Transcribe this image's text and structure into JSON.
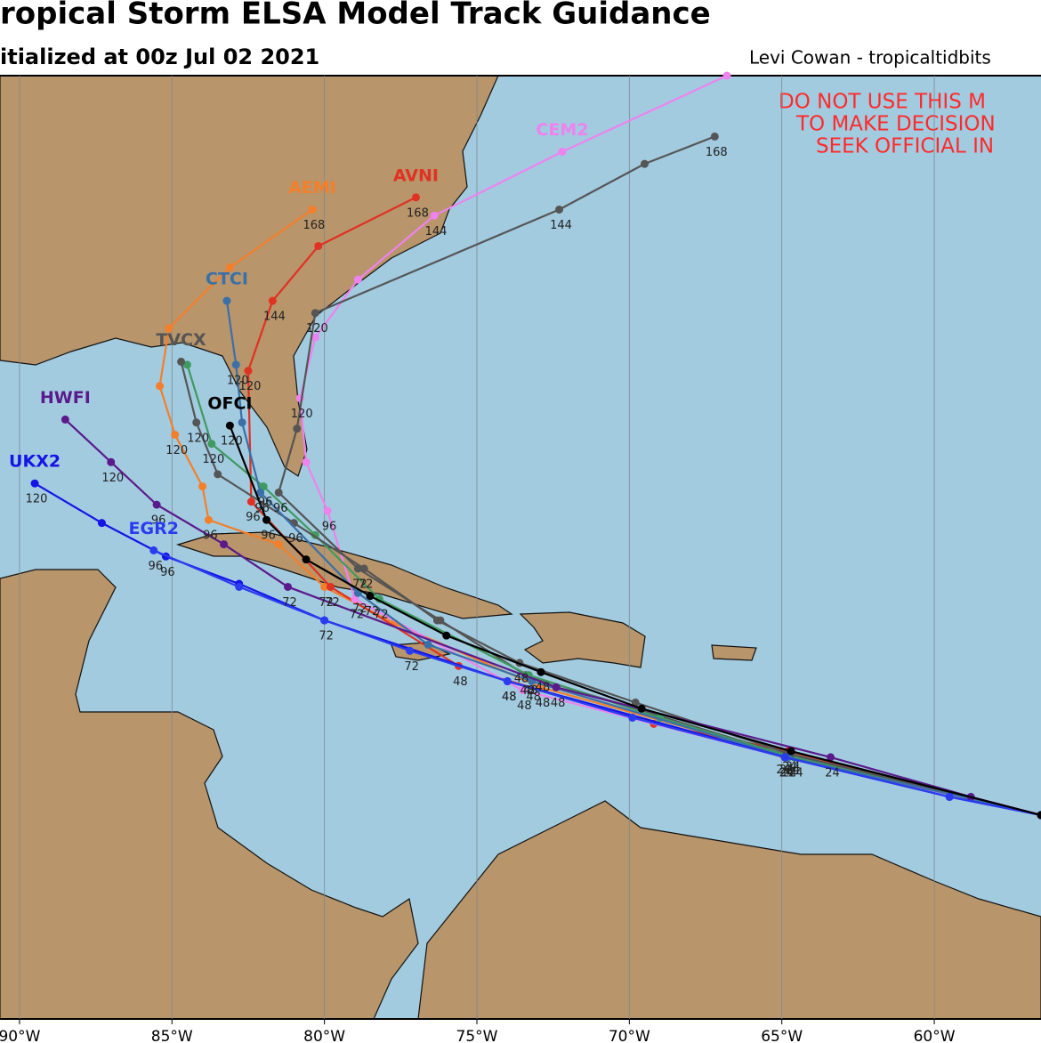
{
  "chart_data": {
    "type": "map",
    "title": "ropical Storm ELSA Model Track Guidance",
    "subtitle": "itialized at 00z Jul 02 2021",
    "credit": "Levi Cowan - tropicaltidbits",
    "disclaimer": [
      "DO NOT USE THIS M",
      "TO MAKE DECISION",
      "SEEK OFFICIAL IN"
    ],
    "xlim": [
      -90.64,
      -56.5
    ],
    "ylim": [
      7.0,
      38.0
    ],
    "xticks": [
      {
        "value": -90,
        "label": "90°W"
      },
      {
        "value": -85,
        "label": "85°W"
      },
      {
        "value": -80,
        "label": "80°W"
      },
      {
        "value": -75,
        "label": "75°W"
      },
      {
        "value": -70,
        "label": "70°W"
      },
      {
        "value": -65,
        "label": "65°W"
      },
      {
        "value": -60,
        "label": "60°W"
      }
    ],
    "grid": true,
    "series": [
      {
        "name": "AEMI",
        "color": "#f47f2a",
        "x": [
          -56.5,
          -65.0,
          -72.9,
          -77.7,
          -80.0,
          -81.5,
          -83.8,
          -84.0,
          -84.9,
          -85.4,
          -85.1,
          -83.1,
          -80.4
        ],
        "values": [
          13.7,
          15.7,
          17.9,
          20.0,
          21.2,
          22.6,
          23.4,
          24.5,
          26.2,
          27.8,
          29.7,
          31.7,
          33.6
        ],
        "hours": [
          null,
          24,
          48,
          null,
          72,
          null,
          96,
          null,
          120,
          null,
          null,
          null,
          168
        ]
      },
      {
        "name": "AVNI",
        "color": "#e03222",
        "x": [
          -56.5,
          -64.8,
          -69.2,
          -75.6,
          -79.8,
          -82.4,
          -82.5,
          -81.7,
          -80.2,
          -77.0
        ],
        "values": [
          13.7,
          15.8,
          16.7,
          18.6,
          21.2,
          24.0,
          28.3,
          30.6,
          32.4,
          34.0
        ],
        "hours": [
          null,
          24,
          null,
          48,
          72,
          96,
          120,
          144,
          null,
          168
        ]
      },
      {
        "name": "CEM2",
        "color": "#ee82ee",
        "x": [
          -56.5,
          -64.9,
          -73.5,
          -79.0,
          -79.9,
          -80.6,
          -80.8,
          -80.3,
          -78.9,
          -76.4,
          -72.2,
          -66.8
        ],
        "values": [
          13.7,
          15.6,
          17.8,
          20.8,
          23.7,
          25.3,
          27.4,
          29.4,
          31.3,
          33.4,
          35.5,
          38.0
        ],
        "hours": [
          null,
          24,
          48,
          72,
          96,
          null,
          120,
          null,
          null,
          144,
          null,
          null
        ]
      },
      {
        "color": "#555555",
        "x": [
          -56.5,
          -64.9,
          -73.4,
          -76.2,
          -78.9,
          -81.5,
          -80.9,
          -80.3,
          -72.3,
          -69.5,
          -67.2
        ],
        "values": [
          13.7,
          15.7,
          18.3,
          20.1,
          21.8,
          24.3,
          26.4,
          30.2,
          33.6,
          35.1,
          36.0
        ],
        "hours": [
          null,
          24,
          48,
          null,
          72,
          96,
          null,
          120,
          144,
          null,
          168
        ]
      },
      {
        "color": "#3f9a5f",
        "x": [
          -56.5,
          -64.6,
          -69.0,
          -73.3,
          -78.2,
          -80.3,
          -82.0,
          -83.7,
          -84.5
        ],
        "values": [
          13.7,
          15.6,
          16.9,
          18.3,
          20.8,
          22.9,
          24.5,
          25.9,
          28.5
        ],
        "hours": [
          null,
          24,
          null,
          48,
          72,
          null,
          96,
          120,
          null
        ]
      },
      {
        "name": "TVCX",
        "color": "#555555",
        "x": [
          -56.5,
          -64.7,
          -69.8,
          -73.6,
          -76.3,
          -78.7,
          -81.0,
          -83.5,
          -84.2,
          -84.7
        ],
        "values": [
          13.7,
          15.7,
          17.4,
          18.7,
          20.1,
          21.8,
          23.3,
          24.9,
          26.6,
          28.6
        ],
        "hours": [
          null,
          24,
          null,
          48,
          null,
          72,
          96,
          null,
          120,
          null
        ]
      },
      {
        "name": "CTCI",
        "color": "#3a70a8",
        "x": [
          -56.5,
          -64.8,
          -73.2,
          -76.6,
          -78.9,
          -82.1,
          -82.7,
          -82.9,
          -83.2
        ],
        "values": [
          13.7,
          15.6,
          18.1,
          19.3,
          21.0,
          24.3,
          26.6,
          28.5,
          30.6
        ],
        "hours": [
          null,
          24,
          48,
          null,
          72,
          96,
          null,
          120,
          null
        ]
      },
      {
        "name": "HWFI",
        "color": "#5b1a8b",
        "x": [
          -56.5,
          -58.8,
          -63.4,
          -72.4,
          -81.2,
          -83.3,
          -85.5,
          -87.0,
          -88.5
        ],
        "values": [
          13.7,
          14.3,
          15.6,
          17.9,
          21.2,
          22.6,
          23.9,
          25.3,
          26.7
        ],
        "hours": [
          null,
          null,
          24,
          48,
          72,
          null,
          96,
          120,
          null
        ]
      },
      {
        "name": "UKX2",
        "color": "#1414e6",
        "x": [
          -56.5,
          -59.5,
          -64.9,
          -74.0,
          -80.0,
          -82.8,
          -85.2,
          -87.3,
          -89.5
        ],
        "values": [
          13.7,
          14.3,
          15.6,
          18.1,
          20.1,
          21.3,
          22.2,
          23.3,
          24.6
        ],
        "hours": [
          null,
          null,
          24,
          48,
          72,
          null,
          96,
          null,
          120
        ]
      },
      {
        "name": "EGR2",
        "color": "#2a3cf0",
        "x": [
          -56.5,
          -59.5,
          -64.9,
          -69.9,
          -74.0,
          -77.2,
          -80.0,
          -82.8,
          -85.6
        ],
        "values": [
          13.7,
          14.3,
          15.6,
          16.9,
          18.1,
          19.1,
          20.1,
          21.2,
          22.4
        ],
        "hours": [
          null,
          null,
          24,
          null,
          48,
          72,
          null,
          null,
          96
        ]
      },
      {
        "name": "OFCI",
        "color": "#000000",
        "x": [
          -56.5,
          -64.7,
          -69.6,
          -72.9,
          -76.0,
          -78.5,
          -80.6,
          -81.9,
          -83.1
        ],
        "values": [
          13.7,
          15.8,
          17.2,
          18.4,
          19.6,
          20.9,
          22.1,
          23.4,
          26.5
        ],
        "hours": [
          null,
          24,
          null,
          48,
          null,
          72,
          null,
          96,
          120
        ]
      }
    ]
  }
}
